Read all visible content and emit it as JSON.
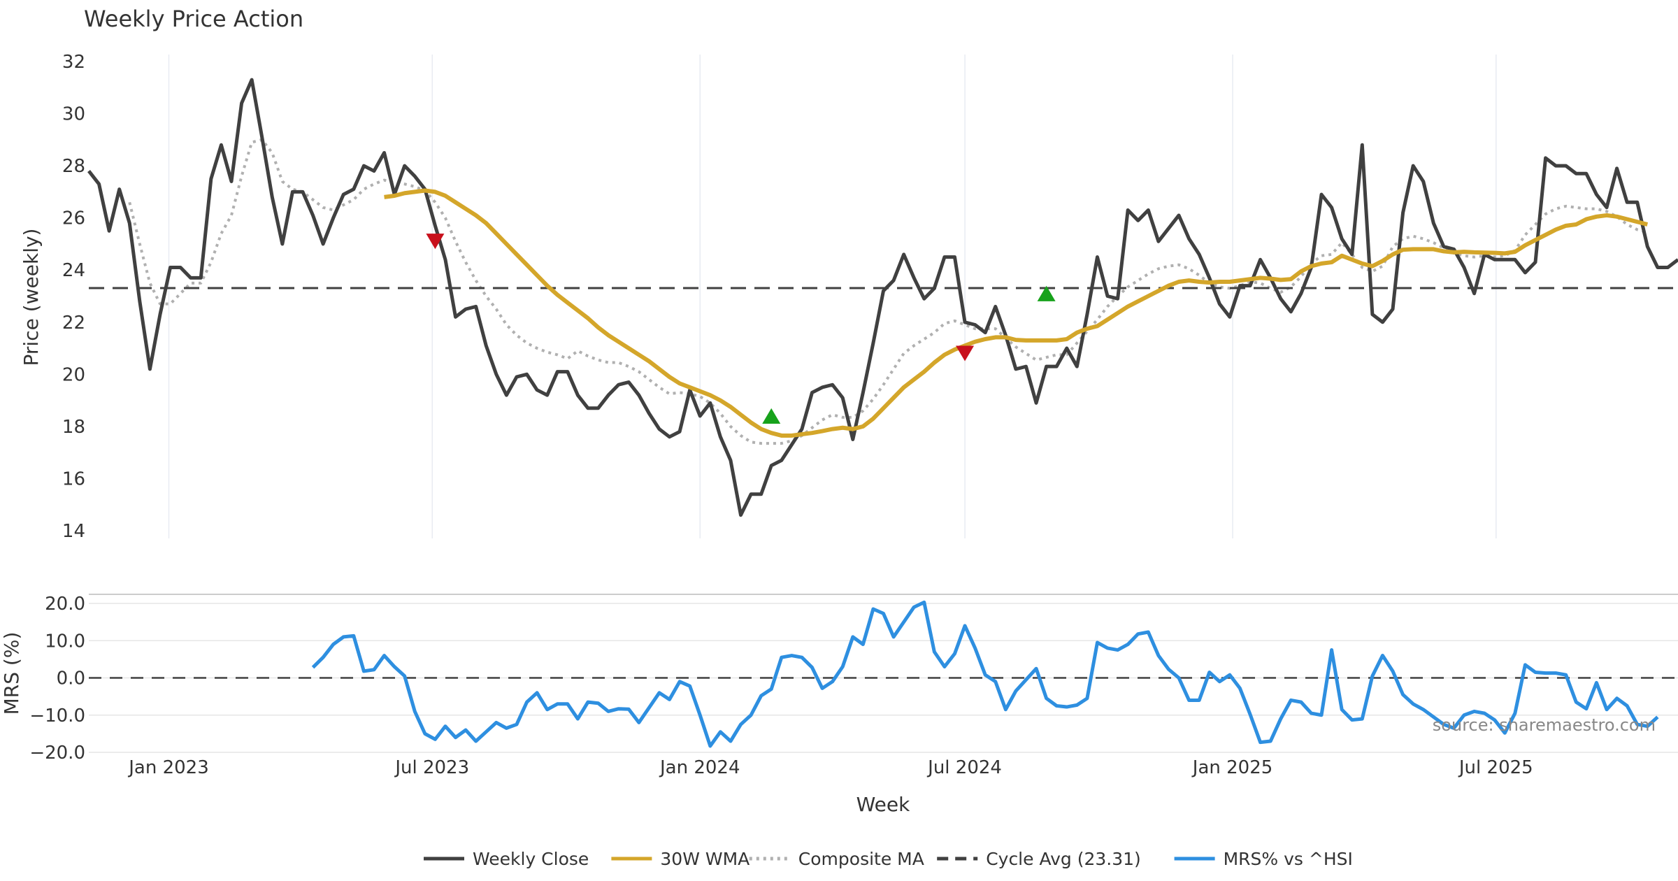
{
  "chart_data": [
    {
      "type": "line",
      "title": "Weekly Price Action",
      "ylabel": "Price (weekly)",
      "ylim": [
        14,
        32
      ],
      "yticks": [
        14,
        16,
        18,
        20,
        22,
        24,
        26,
        28,
        30,
        32
      ],
      "x_start": "2022-11-07",
      "x_step_days": 7,
      "series": [
        {
          "name": "Weekly Close",
          "color": "#404040",
          "values": [
            27.8,
            27.3,
            25.5,
            27.1,
            25.8,
            22.8,
            20.2,
            22.3,
            24.1,
            24.1,
            23.7,
            23.7,
            27.5,
            28.8,
            27.4,
            30.4,
            31.3,
            29.1,
            26.8,
            25.0,
            27.0,
            27.0,
            26.1,
            25.0,
            26.0,
            26.9,
            27.1,
            28.0,
            27.8,
            28.5,
            26.9,
            28.0,
            27.6,
            27.1,
            25.7,
            24.4,
            22.2,
            22.5,
            22.6,
            21.1,
            20.0,
            19.2,
            19.9,
            20.0,
            19.4,
            19.2,
            20.1,
            20.1,
            19.2,
            18.7,
            18.7,
            19.2,
            19.6,
            19.7,
            19.2,
            18.5,
            17.9,
            17.6,
            17.8,
            19.4,
            18.4,
            18.9,
            17.6,
            16.7,
            14.6,
            15.4,
            15.4,
            16.5,
            16.7,
            17.3,
            17.9,
            19.3,
            19.5,
            19.6,
            19.1,
            17.5,
            19.3,
            21.2,
            23.2,
            23.6,
            24.6,
            23.7,
            22.9,
            23.3,
            24.5,
            24.5,
            22.0,
            21.9,
            21.6,
            22.6,
            21.5,
            20.2,
            20.3,
            18.9,
            20.3,
            20.3,
            21.0,
            20.3,
            22.3,
            24.5,
            23.0,
            22.9,
            26.3,
            25.9,
            26.3,
            25.1,
            25.6,
            26.1,
            25.2,
            24.6,
            23.7,
            22.7,
            22.2,
            23.4,
            23.4,
            24.4,
            23.7,
            22.9,
            22.4,
            23.1,
            24.1,
            26.9,
            26.4,
            25.2,
            24.6,
            28.8,
            22.3,
            22.0,
            22.5,
            26.2,
            28.0,
            27.4,
            25.8,
            24.9,
            24.8,
            24.1,
            23.1,
            24.6,
            24.4,
            24.4,
            24.4,
            23.9,
            24.3,
            28.3,
            28.0,
            28.0,
            27.7,
            27.7,
            26.9,
            26.4,
            27.9,
            26.6,
            26.6,
            24.9,
            24.1,
            24.1,
            24.4
          ]
        },
        {
          "name": "30W WMA",
          "color": "#d4a62a",
          "values": [
            null,
            null,
            null,
            null,
            null,
            null,
            null,
            null,
            null,
            null,
            null,
            null,
            null,
            null,
            null,
            null,
            null,
            null,
            null,
            null,
            null,
            null,
            null,
            null,
            null,
            null,
            null,
            null,
            null,
            26.8,
            26.85,
            26.95,
            27.0,
            27.05,
            27.0,
            26.85,
            26.6,
            26.35,
            26.1,
            25.8,
            25.4,
            25.0,
            24.6,
            24.2,
            23.8,
            23.4,
            23.05,
            22.75,
            22.45,
            22.15,
            21.8,
            21.5,
            21.25,
            21.0,
            20.75,
            20.5,
            20.2,
            19.9,
            19.65,
            19.5,
            19.35,
            19.2,
            19.0,
            18.75,
            18.45,
            18.15,
            17.9,
            17.75,
            17.65,
            17.65,
            17.7,
            17.75,
            17.82,
            17.9,
            17.95,
            17.9,
            18.0,
            18.3,
            18.7,
            19.1,
            19.5,
            19.8,
            20.1,
            20.45,
            20.75,
            20.95,
            21.1,
            21.25,
            21.35,
            21.42,
            21.42,
            21.32,
            21.3,
            21.3,
            21.3,
            21.3,
            21.35,
            21.6,
            21.75,
            21.85,
            22.1,
            22.35,
            22.6,
            22.8,
            23.0,
            23.2,
            23.4,
            23.55,
            23.6,
            23.55,
            23.52,
            23.55,
            23.55,
            23.6,
            23.65,
            23.7,
            23.67,
            23.62,
            23.65,
            23.95,
            24.15,
            24.25,
            24.3,
            24.55,
            24.4,
            24.25,
            24.15,
            24.35,
            24.6,
            24.78,
            24.8,
            24.8,
            24.8,
            24.72,
            24.68,
            24.7,
            24.68,
            24.67,
            24.66,
            24.64,
            24.7,
            24.95,
            25.15,
            25.35,
            25.55,
            25.7,
            25.75,
            25.95,
            26.05,
            26.1,
            26.05,
            25.95,
            25.85,
            25.75
          ]
        },
        {
          "name": "Composite MA",
          "color": "#b0b0b0",
          "values": [
            null,
            null,
            null,
            null,
            26.6,
            25.0,
            23.5,
            22.7,
            22.7,
            23.1,
            23.5,
            23.5,
            24.3,
            25.4,
            26.1,
            27.6,
            28.9,
            29.0,
            28.5,
            27.4,
            27.1,
            27.0,
            26.7,
            26.4,
            26.3,
            26.5,
            26.7,
            27.1,
            27.3,
            27.45,
            27.35,
            27.3,
            27.2,
            27.05,
            26.6,
            26.0,
            25.1,
            24.3,
            23.6,
            23.0,
            22.5,
            21.9,
            21.5,
            21.2,
            21.0,
            20.85,
            20.75,
            20.6,
            20.9,
            20.7,
            20.55,
            20.45,
            20.45,
            20.3,
            20.1,
            19.8,
            19.5,
            19.25,
            19.3,
            19.25,
            19.15,
            18.9,
            18.5,
            18.0,
            17.65,
            17.4,
            17.35,
            17.35,
            17.35,
            17.45,
            17.65,
            17.95,
            18.25,
            18.45,
            18.35,
            18.35,
            18.6,
            19.05,
            19.6,
            20.2,
            20.8,
            21.1,
            21.35,
            21.6,
            21.95,
            22.05,
            21.9,
            21.75,
            21.75,
            21.75,
            21.4,
            21.05,
            20.8,
            20.55,
            20.65,
            20.75,
            20.75,
            21.2,
            21.65,
            22.1,
            22.6,
            23.0,
            23.35,
            23.6,
            23.85,
            24.05,
            24.15,
            24.2,
            24.05,
            23.8,
            23.5,
            23.35,
            23.3,
            23.4,
            23.55,
            23.5,
            23.3,
            23.15,
            23.35,
            23.75,
            24.25,
            24.55,
            24.6,
            25.05,
            24.6,
            24.1,
            23.95,
            24.15,
            24.9,
            25.2,
            25.3,
            25.2,
            25.05,
            24.85,
            24.65,
            24.55,
            24.5,
            24.55,
            24.5,
            24.55,
            24.75,
            25.35,
            25.75,
            26.15,
            26.35,
            26.45,
            26.4,
            26.35,
            26.35,
            26.25,
            26.05,
            25.75,
            25.55,
            25.45
          ]
        },
        {
          "name": "Cycle Avg (23.31)",
          "color": "#404040",
          "constant": 23.31
        }
      ],
      "markers": [
        {
          "type": "sell",
          "week_index": 34,
          "y": 25.1
        },
        {
          "type": "buy",
          "week_index": 67,
          "y": 18.4
        },
        {
          "type": "sell",
          "week_index": 86,
          "y": 20.8
        },
        {
          "type": "buy",
          "week_index": 94,
          "y": 23.1
        }
      ],
      "grid": true
    },
    {
      "type": "line",
      "ylabel": "MRS (%)",
      "xlabel": "Week",
      "ylim": [
        -20,
        20
      ],
      "yticks": [
        "−20.0",
        "−10.0",
        "0.0",
        "10.0",
        "20.0"
      ],
      "ytick_values": [
        -20,
        -10,
        0,
        10,
        20
      ],
      "xticks": [
        "Jan 2023",
        "Jul 2023",
        "Jan 2024",
        "Jul 2024",
        "Jan 2025",
        "Jul 2025"
      ],
      "xtick_dates": [
        "2023-01-01",
        "2023-07-01",
        "2024-01-01",
        "2024-07-01",
        "2025-01-01",
        "2025-07-01"
      ],
      "zero_line": true,
      "series": [
        {
          "name": "MRS% vs ^HSI",
          "color": "#2e8fe0",
          "start_index": 22,
          "values": [
            2.8,
            5.5,
            9.0,
            11.0,
            11.3,
            1.8,
            2.2,
            6.0,
            3.0,
            0.5,
            -9.0,
            -15.0,
            -16.5,
            -13.0,
            -16.0,
            -14.0,
            -17.0,
            -14.5,
            -12.0,
            -13.5,
            -12.5,
            -6.5,
            -4.0,
            -8.5,
            -7.0,
            -7.0,
            -11.0,
            -6.5,
            -6.8,
            -9.0,
            -8.3,
            -8.4,
            -12.0,
            -8.0,
            -4.0,
            -5.8,
            -1.0,
            -2.2,
            -10.0,
            -18.3,
            -14.5,
            -17.0,
            -12.5,
            -10.0,
            -4.8,
            -3.0,
            5.5,
            6.0,
            5.5,
            2.8,
            -2.8,
            -1.0,
            3.0,
            11.0,
            9.0,
            18.5,
            17.3,
            11.0,
            15.0,
            19.0,
            20.3,
            7.0,
            3.0,
            6.5,
            14.0,
            8.0,
            0.8,
            -1.0,
            -8.5,
            -3.5,
            -0.5,
            2.5,
            -5.5,
            -7.5,
            -7.8,
            -7.3,
            -5.5,
            9.5,
            8.0,
            7.5,
            9.0,
            11.8,
            12.3,
            6.0,
            2.3,
            0.0,
            -6.0,
            -6.0,
            1.5,
            -1.0,
            0.8,
            -2.8,
            -9.8,
            -17.3,
            -17.0,
            -11.0,
            -6.0,
            -6.5,
            -9.5,
            -10.0,
            7.5,
            -8.5,
            -11.3,
            -11.0,
            0.5,
            6.0,
            1.8,
            -4.5,
            -7.0,
            -8.5,
            -10.5,
            -12.5,
            -13.5,
            -10.0,
            -9.0,
            -9.5,
            -11.3,
            -14.8,
            -9.5,
            3.5,
            1.5,
            1.3,
            1.3,
            0.8,
            -6.5,
            -8.3,
            -1.3,
            -8.5,
            -5.5,
            -7.5,
            -12.5,
            -13.0,
            -10.5
          ]
        }
      ],
      "annotation": "source: sharemaestro.com",
      "grid": true
    }
  ],
  "legend": {
    "placement": "bottom-center",
    "items": [
      {
        "label": "Weekly Close",
        "style": "solid",
        "color": "#404040"
      },
      {
        "label": "30W WMA",
        "style": "solid",
        "color": "#d4a62a"
      },
      {
        "label": "Composite MA",
        "style": "dotted",
        "color": "#b0b0b0"
      },
      {
        "label": "Cycle Avg (23.31)",
        "style": "dashed",
        "color": "#404040"
      },
      {
        "label": "MRS% vs ^HSI",
        "style": "solid",
        "color": "#2e8fe0"
      }
    ]
  }
}
